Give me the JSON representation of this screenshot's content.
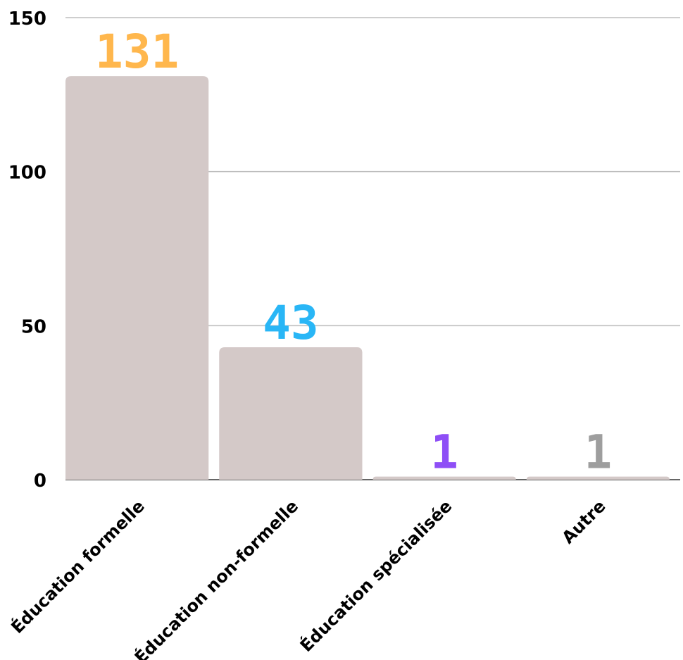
{
  "chart_data": {
    "type": "bar",
    "categories": [
      "Éducation formelle",
      "Éducation non-formelle",
      "Éducation spécialisée",
      "Autre"
    ],
    "values": [
      131,
      43,
      1,
      1
    ],
    "data_labels": [
      "131",
      "43",
      "1",
      "1"
    ],
    "label_colors": [
      "#ffb74d",
      "#29b6f6",
      "#8e4ef6",
      "#9e9e9e"
    ],
    "bar_color": "#d4c9c8",
    "ylim": [
      0,
      150
    ],
    "yticks": [
      0,
      50,
      100,
      150
    ],
    "ytick_labels": [
      "0",
      "50",
      "100",
      "150"
    ],
    "grid": true,
    "legend": "none",
    "title": "",
    "xlabel": "",
    "ylabel": ""
  }
}
